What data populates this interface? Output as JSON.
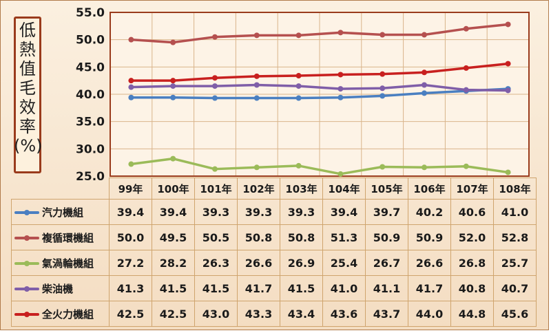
{
  "chart_data": {
    "type": "line",
    "ylabel": "低熱值毛效率(%)",
    "ylim": [
      25.0,
      55.0
    ],
    "yticks": [
      "55.0",
      "50.0",
      "45.0",
      "40.0",
      "35.0",
      "30.0",
      "25.0"
    ],
    "categories": [
      "99年",
      "100年",
      "101年",
      "102年",
      "103年",
      "104年",
      "105年",
      "106年",
      "107年",
      "108年"
    ],
    "grid": true,
    "series": [
      {
        "name": "汽力機組",
        "color": "#4a7fc1",
        "values": [
          39.4,
          39.4,
          39.3,
          39.3,
          39.3,
          39.4,
          39.7,
          40.2,
          40.6,
          41.0
        ]
      },
      {
        "name": "複循環機組",
        "color": "#b5504f",
        "values": [
          50.0,
          49.5,
          50.5,
          50.8,
          50.8,
          51.3,
          50.9,
          50.9,
          52.0,
          52.8
        ]
      },
      {
        "name": "氣渦輪機組",
        "color": "#9bbb59",
        "values": [
          27.2,
          28.2,
          26.3,
          26.6,
          26.9,
          25.4,
          26.7,
          26.6,
          26.8,
          25.7
        ]
      },
      {
        "name": "柴油機",
        "color": "#7f5ea8",
        "values": [
          41.3,
          41.5,
          41.5,
          41.7,
          41.5,
          41.0,
          41.1,
          41.7,
          40.8,
          40.7
        ]
      },
      {
        "name": "全火力機組",
        "color": "#c8201f",
        "values": [
          42.5,
          42.5,
          43.0,
          43.3,
          43.4,
          43.6,
          43.7,
          44.0,
          44.8,
          45.6
        ]
      }
    ],
    "table_values": [
      [
        "39.4",
        "39.4",
        "39.3",
        "39.3",
        "39.3",
        "39.4",
        "39.7",
        "40.2",
        "40.6",
        "41.0"
      ],
      [
        "50.0",
        "49.5",
        "50.5",
        "50.8",
        "50.8",
        "51.3",
        "50.9",
        "50.9",
        "52.0",
        "52.8"
      ],
      [
        "27.2",
        "28.2",
        "26.3",
        "26.6",
        "26.9",
        "25.4",
        "26.7",
        "26.6",
        "26.8",
        "25.7"
      ],
      [
        "41.3",
        "41.5",
        "41.5",
        "41.7",
        "41.5",
        "41.0",
        "41.1",
        "41.7",
        "40.8",
        "40.7"
      ],
      [
        "42.5",
        "42.5",
        "43.0",
        "43.3",
        "43.4",
        "43.6",
        "43.7",
        "44.0",
        "44.8",
        "45.6"
      ]
    ]
  }
}
